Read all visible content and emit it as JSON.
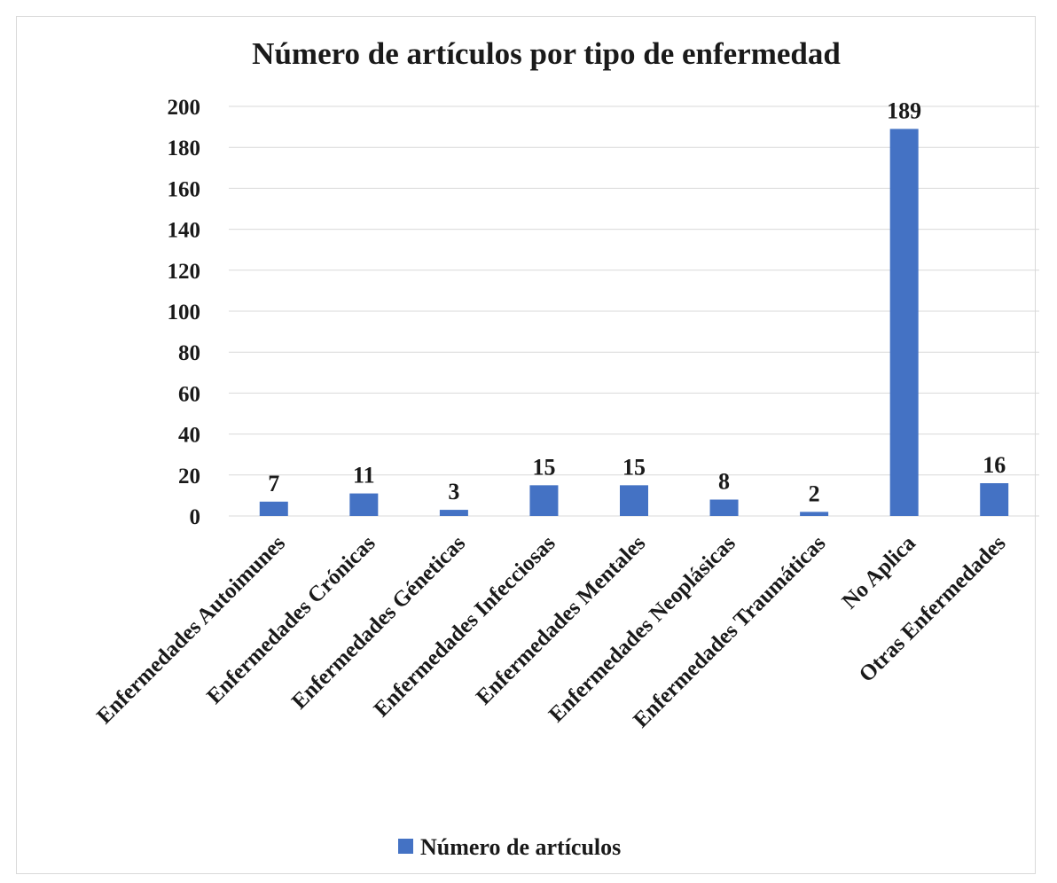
{
  "chart_data": {
    "type": "bar",
    "title": "Número de artículos por tipo de enfermedad",
    "categories": [
      "Enfermedades Autoimunes",
      "Enfermedades Crónicas",
      "Enfermedades Géneticas",
      "Enfermedades Infecciosas",
      "Enfermedades Mentales",
      "Enfermedades Neoplásicas",
      "Enfermedades Traumáticas",
      "No Aplica",
      "Otras Enfermedades"
    ],
    "series": [
      {
        "name": "Número de artículos",
        "values": [
          7,
          11,
          3,
          15,
          15,
          8,
          2,
          189,
          16
        ]
      }
    ],
    "data_labels": [
      "7",
      "11",
      "3",
      "15",
      "15",
      "8",
      "2",
      "189",
      "16"
    ],
    "yticks": [
      0,
      20,
      40,
      60,
      80,
      100,
      120,
      140,
      160,
      180,
      200
    ],
    "ylim": [
      0,
      200
    ],
    "xlabel": "",
    "ylabel": "",
    "grid": true,
    "legend": "bottom",
    "colors": {
      "bar": "#4472c4",
      "grid": "#d9d9d9",
      "text": "#1a1a1a"
    }
  }
}
